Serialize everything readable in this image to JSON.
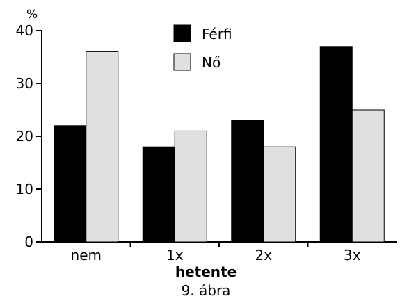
{
  "chart_data": {
    "type": "bar",
    "ylabel": "%",
    "xlabel": "hetente",
    "caption": "9. ábra",
    "categories": [
      "nem",
      "1x",
      "2x",
      "3x"
    ],
    "series": [
      {
        "name": "Férfi",
        "values": [
          22,
          18,
          23,
          37
        ],
        "color": "#000000"
      },
      {
        "name": "Nő",
        "values": [
          36,
          21,
          18,
          25
        ],
        "color": "#e0e0e0"
      }
    ],
    "ylim": [
      0,
      40
    ],
    "yticks": [
      0,
      10,
      20,
      30,
      40
    ],
    "grid": false,
    "legend": "top-center"
  }
}
